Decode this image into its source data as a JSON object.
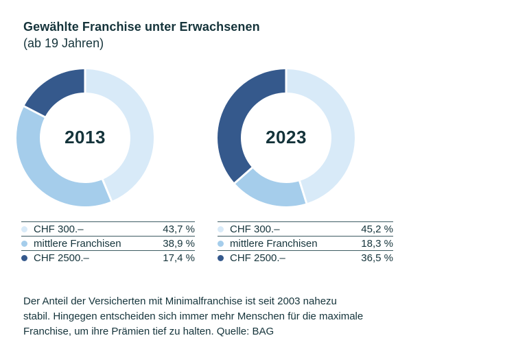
{
  "title": "Gewählte Franchise unter Erwachsenen",
  "subtitle": "(ab 19 Jahren)",
  "colors": {
    "background": "#ffffff",
    "text": "#14333a",
    "rule": "#3d5b62",
    "segments": [
      "#d8eaf8",
      "#a5cdeb",
      "#35598c"
    ]
  },
  "chart_data": [
    {
      "type": "pie",
      "donut": true,
      "center_label": "2013",
      "categories": [
        "CHF 300.–",
        "mittlere Franchisen",
        "CHF 2500.–"
      ],
      "values": [
        43.7,
        38.9,
        17.4
      ],
      "value_labels": [
        "43,7 %",
        "38,9 %",
        "17,4 %"
      ],
      "unit": "%",
      "colors": [
        "#d8eaf8",
        "#a5cdeb",
        "#35598c"
      ],
      "start_angle": "top",
      "direction": "clockwise",
      "legend_position": "below"
    },
    {
      "type": "pie",
      "donut": true,
      "center_label": "2023",
      "categories": [
        "CHF 300.–",
        "mittlere Franchisen",
        "CHF 2500.–"
      ],
      "values": [
        45.2,
        18.3,
        36.5
      ],
      "value_labels": [
        "45,2 %",
        "18,3 %",
        "36,5 %"
      ],
      "unit": "%",
      "colors": [
        "#d8eaf8",
        "#a5cdeb",
        "#35598c"
      ],
      "start_angle": "top",
      "direction": "clockwise",
      "legend_position": "below"
    }
  ],
  "footer": {
    "lines": [
      "Der Anteil der Versicherten mit Minimalfranchise ist seit 2003 nahezu",
      "stabil. Hingegen entscheiden sich immer mehr Menschen für die maximale",
      "Franchise, um ihre Prämien tief zu halten. Quelle: BAG"
    ]
  }
}
